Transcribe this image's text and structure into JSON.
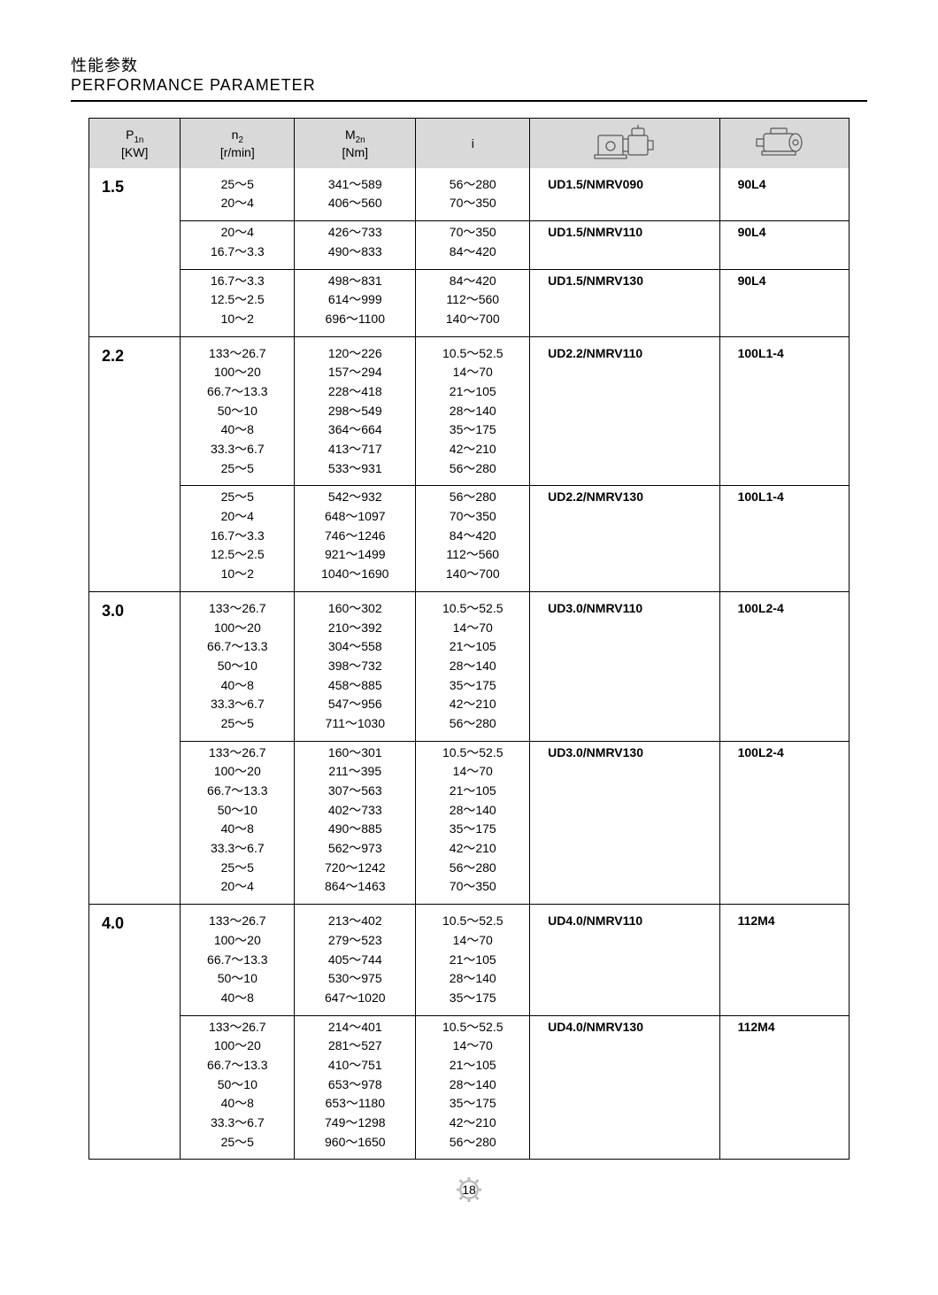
{
  "title": {
    "cn": "性能参数",
    "en": "PERFORMANCE PARAMETER"
  },
  "headers": {
    "p1n_label": "P",
    "p1n_sub": "1n",
    "p1n_unit": "[KW]",
    "n2_label": "n",
    "n2_sub": "2",
    "n2_unit": "[r/min]",
    "m2n_label": "M",
    "m2n_sub": "2n",
    "m2n_unit": "[Nm]",
    "i_label": "i"
  },
  "page_number": "18",
  "groups": [
    {
      "kw": "1.5",
      "rows": [
        {
          "n2": "25～5\n20～4",
          "m2n": "341～589\n406～560",
          "i": "56～280\n70～350",
          "model": "UD1.5/NMRV090",
          "motor": "90L4",
          "sep": "sub"
        },
        {
          "n2": "20～4\n16.7～3.3",
          "m2n": "426～733\n490～833",
          "i": "70～350\n84～420",
          "model": "UD1.5/NMRV110",
          "motor": "90L4",
          "sep": "sub"
        },
        {
          "n2": "16.7～3.3\n12.5～2.5\n10～2",
          "m2n": "498～831\n614～999\n696～1100",
          "i": "84～420\n112～560\n140～700",
          "model": "UD1.5/NMRV130",
          "motor": "90L4",
          "sep": "group"
        }
      ]
    },
    {
      "kw": "2.2",
      "rows": [
        {
          "n2": "133～26.7\n100～20\n66.7～13.3\n50～10\n40～8\n33.3～6.7\n25～5",
          "m2n": "120～226\n157～294\n228～418\n298～549\n364～664\n413～717\n533～931",
          "i": "10.5～52.5\n14～70\n21～105\n28～140\n35～175\n42～210\n56～280",
          "model": "UD2.2/NMRV110",
          "motor": "100L1-4",
          "sep": "sub"
        },
        {
          "n2": "25～5\n20～4\n16.7～3.3\n12.5～2.5\n10～2",
          "m2n": "542～932\n648～1097\n746～1246\n921～1499\n1040～1690",
          "i": "56～280\n70～350\n84～420\n112～560\n140～700",
          "model": "UD2.2/NMRV130",
          "motor": "100L1-4",
          "sep": "group"
        }
      ]
    },
    {
      "kw": "3.0",
      "rows": [
        {
          "n2": "133～26.7\n100～20\n66.7～13.3\n50～10\n40～8\n33.3～6.7\n25～5",
          "m2n": "160～302\n210～392\n304～558\n398～732\n458～885\n547～956\n711～1030",
          "i": "10.5～52.5\n14～70\n21～105\n28～140\n35～175\n42～210\n56～280",
          "model": "UD3.0/NMRV110",
          "motor": "100L2-4",
          "sep": "sub"
        },
        {
          "n2": "133～26.7\n100～20\n66.7～13.3\n50～10\n40～8\n33.3～6.7\n25～5\n20～4",
          "m2n": "160～301\n211～395\n307～563\n402～733\n490～885\n562～973\n720～1242\n864～1463",
          "i": "10.5～52.5\n14～70\n21～105\n28～140\n35～175\n42～210\n56～280\n70～350",
          "model": "UD3.0/NMRV130",
          "motor": "100L2-4",
          "sep": "group"
        }
      ]
    },
    {
      "kw": "4.0",
      "rows": [
        {
          "n2": "133～26.7\n100～20\n66.7～13.3\n50～10\n40～8",
          "m2n": "213～402\n279～523\n405～744\n530～975\n647～1020",
          "i": "10.5～52.5\n14～70\n21～105\n28～140\n35～175",
          "model": "UD4.0/NMRV110",
          "motor": "112M4",
          "sep": "sub"
        },
        {
          "n2": "133～26.7\n100～20\n66.7～13.3\n50～10\n40～8\n33.3～6.7\n25～5",
          "m2n": "214～401\n281～527\n410～751\n653～978\n653～1180\n749～1298\n960～1650",
          "i": "10.5～52.5\n14～70\n21～105\n28～140\n35～175\n42～210\n56～280",
          "model": "UD4.0/NMRV130",
          "motor": "112M4",
          "sep": "group"
        }
      ]
    }
  ],
  "col_widths": [
    "12%",
    "15%",
    "16%",
    "15%",
    "25%",
    "17%"
  ]
}
